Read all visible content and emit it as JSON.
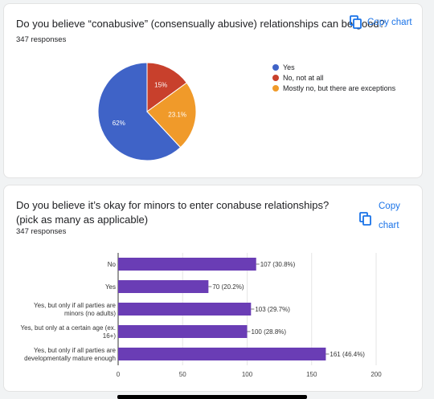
{
  "colors": {
    "blue": "#3f63c7",
    "red": "#c8402c",
    "orange": "#f09a2a",
    "purple": "#6a3db5",
    "link": "#1a73e8"
  },
  "card1": {
    "question": "Do you believe “conabusive” (consensually abusive) relationships can be good?",
    "responses": "347 responses",
    "copy_label": "Copy chart",
    "copy_icon": "copy-icon"
  },
  "card2": {
    "question": "Do you believe it’s okay for minors to enter conabuse relationships? (pick as many as applicable)",
    "responses": "347 responses",
    "copy_label_1": "Copy",
    "copy_label_2": "chart",
    "copy_icon": "copy-icon"
  },
  "chart_data": [
    {
      "type": "pie",
      "slices": [
        {
          "label": "Yes",
          "value": 62,
          "display": "62%",
          "color": "#3f63c7"
        },
        {
          "label": "No, not at all",
          "value": 15,
          "display": "15%",
          "color": "#c8402c"
        },
        {
          "label": "Mostly no, but there are exceptions",
          "value": 23.1,
          "display": "23.1%",
          "color": "#f09a2a"
        }
      ],
      "legend_position": "right"
    },
    {
      "type": "bar",
      "orientation": "horizontal",
      "categories": [
        [
          "No"
        ],
        [
          "Yes"
        ],
        [
          "Yes, but only if all parties are",
          "minors (no adults)"
        ],
        [
          "Yes, but only at a certain age (ex.",
          "16+)"
        ],
        [
          "Yes, but only if all parties are",
          "developmentally mature enough"
        ]
      ],
      "values": [
        107,
        70,
        103,
        100,
        161
      ],
      "value_labels": [
        "107 (30.8%)",
        "70 (20.2%)",
        "103 (29.7%)",
        "100 (28.8%)",
        "161 (46.4%)"
      ],
      "xlim": [
        0,
        200
      ],
      "xticks": [
        0,
        50,
        100,
        150,
        200
      ],
      "grid": true,
      "color": "#6a3db5"
    }
  ]
}
